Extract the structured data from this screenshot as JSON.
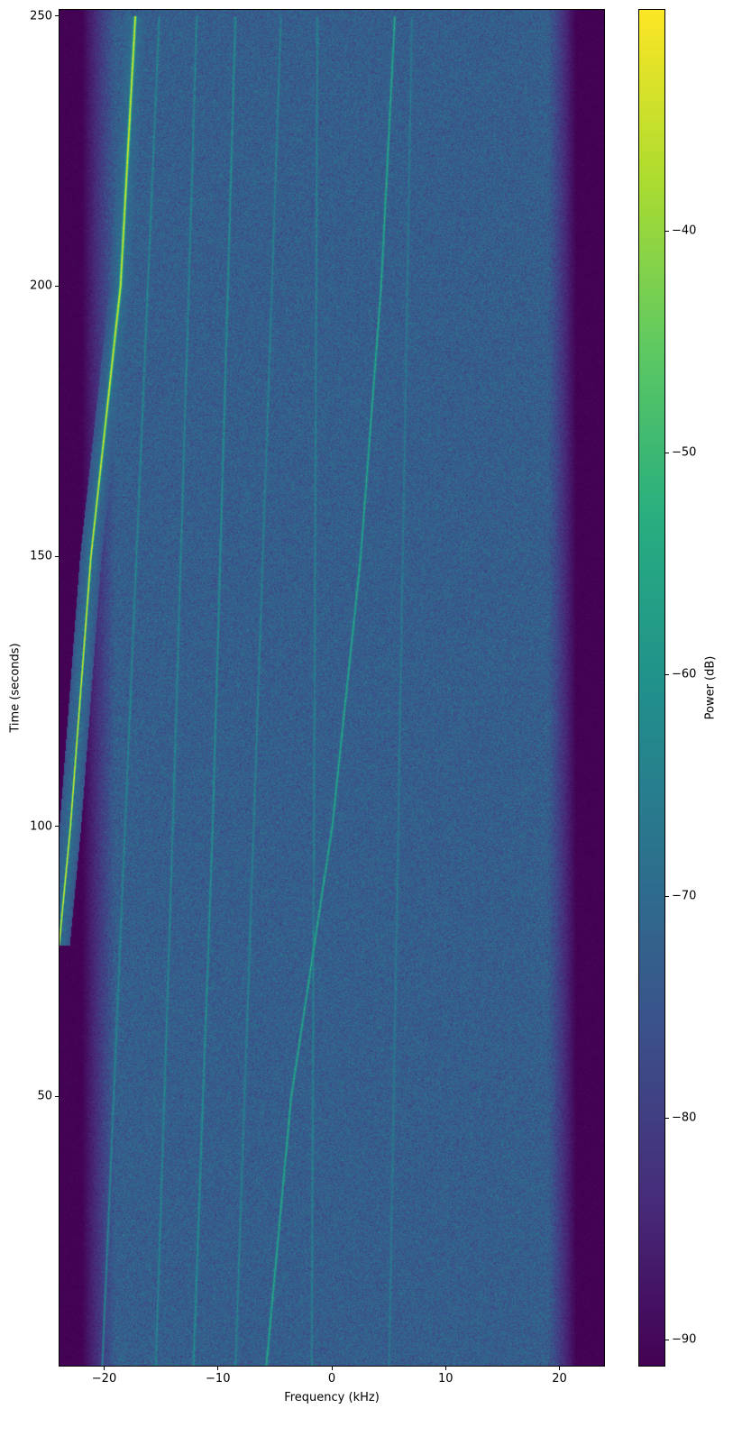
{
  "chart_data": {
    "type": "heatmap",
    "subtype": "spectrogram",
    "title": "",
    "xlabel": "Frequency (kHz)",
    "ylabel": "Time (seconds)",
    "colorbar_label": "Power (dB)",
    "colormap": "viridis",
    "xlim": [
      -24,
      24
    ],
    "ylim": [
      0,
      251.3
    ],
    "clim": [
      -91.2,
      -30
    ],
    "xticks": [
      -20,
      -10,
      0,
      10,
      20
    ],
    "xtick_labels": [
      "−20",
      "−10",
      "0",
      "10",
      "20"
    ],
    "yticks": [
      50,
      100,
      150,
      200,
      250
    ],
    "ytick_labels": [
      "50",
      "100",
      "150",
      "200",
      "250"
    ],
    "cbar_ticks": [
      -40,
      -50,
      -60,
      -70,
      -80,
      -90
    ],
    "cbar_tick_labels": [
      "−40",
      "−50",
      "−60",
      "−70",
      "−80",
      "−90"
    ],
    "noise_floor_db": -73,
    "band_edge_khz": [
      -22,
      21.5
    ],
    "traces": [
      {
        "peak_db": -33,
        "points": [
          [
            78,
            -24
          ],
          [
            100,
            -23
          ],
          [
            150,
            -21.2
          ],
          [
            200,
            -18.6
          ],
          [
            250,
            -17.3
          ]
        ]
      },
      {
        "peak_db": -55,
        "points": [
          [
            0,
            -5.8
          ],
          [
            50,
            -3.6
          ],
          [
            100,
            0
          ],
          [
            150,
            2.5
          ],
          [
            200,
            4.3
          ],
          [
            250,
            5.5
          ]
        ]
      },
      {
        "peak_db": -62,
        "points": [
          [
            0,
            -12.2
          ],
          [
            100,
            -10.5
          ],
          [
            250,
            -8.5
          ]
        ]
      },
      {
        "peak_db": -64,
        "points": [
          [
            0,
            -15.5
          ],
          [
            100,
            -14.0
          ],
          [
            250,
            -11.9
          ]
        ]
      },
      {
        "peak_db": -64,
        "points": [
          [
            0,
            -20.2
          ],
          [
            100,
            -18.2
          ],
          [
            250,
            -15.2
          ]
        ]
      },
      {
        "peak_db": -65,
        "points": [
          [
            0,
            -8.5
          ],
          [
            100,
            -6.9
          ],
          [
            250,
            -4.5
          ]
        ]
      },
      {
        "peak_db": -65,
        "points": [
          [
            0,
            -1.8
          ],
          [
            250,
            -1.3
          ]
        ]
      },
      {
        "peak_db": -67,
        "points": [
          [
            0,
            5.0
          ],
          [
            100,
            5.8
          ],
          [
            250,
            7.0
          ]
        ]
      }
    ]
  }
}
